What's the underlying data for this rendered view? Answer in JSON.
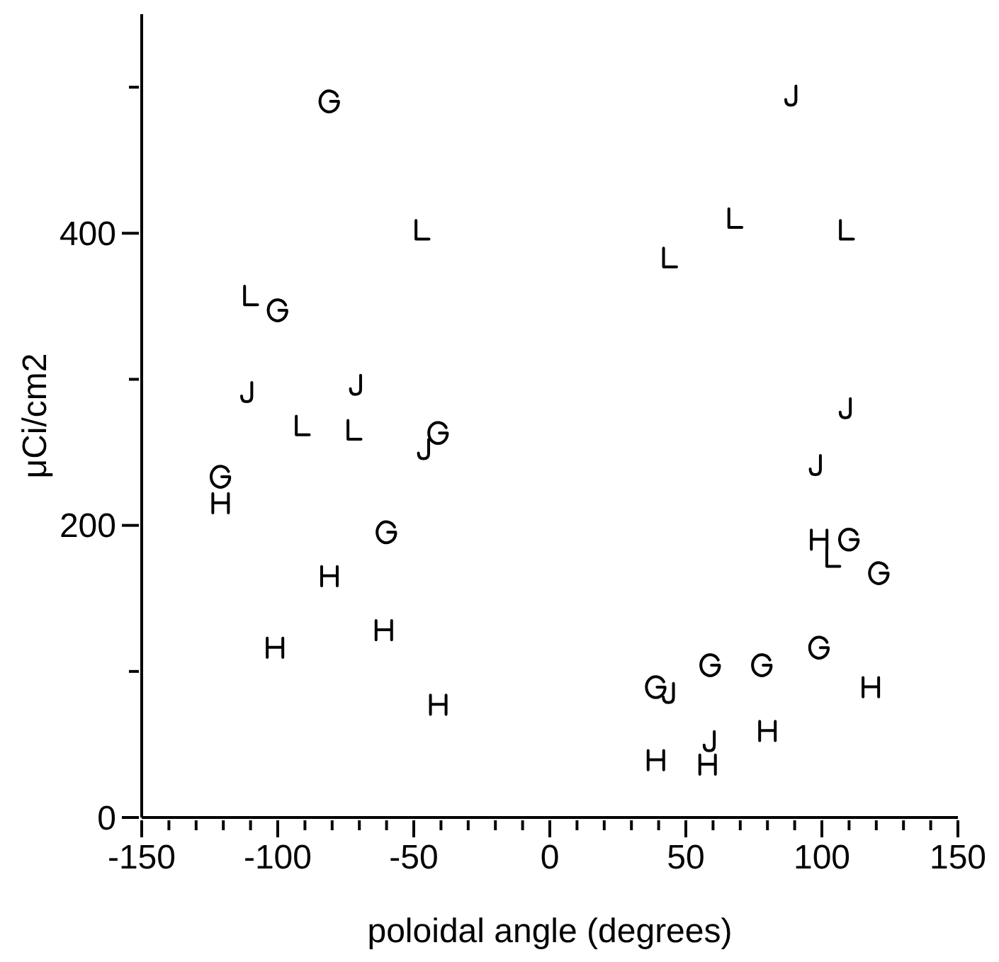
{
  "chart_data": {
    "type": "scatter",
    "xlabel": "poloidal angle (degrees)",
    "ylabel": "μCi/cm2",
    "legend": false,
    "grid": false,
    "xlim": [
      -150,
      150
    ],
    "ylim": [
      0,
      550
    ],
    "xticks": [
      -150,
      {
        "value": -140,
        "label": null
      },
      {
        "value": -130,
        "label": null
      },
      {
        "value": -120,
        "label": null
      },
      {
        "value": -110,
        "label": null
      },
      -100,
      {
        "value": -90,
        "label": null
      },
      {
        "value": -80,
        "label": null
      },
      {
        "value": -70,
        "label": null
      },
      {
        "value": -60,
        "label": null
      },
      -50,
      {
        "value": -40,
        "label": null
      },
      {
        "value": -30,
        "label": null
      },
      {
        "value": -20,
        "label": null
      },
      {
        "value": -10,
        "label": null
      },
      0,
      {
        "value": 10,
        "label": null
      },
      {
        "value": 20,
        "label": null
      },
      {
        "value": 30,
        "label": null
      },
      {
        "value": 40,
        "label": null
      },
      50,
      {
        "value": 60,
        "label": null
      },
      {
        "value": 70,
        "label": null
      },
      {
        "value": 80,
        "label": null
      },
      {
        "value": 90,
        "label": null
      },
      100,
      {
        "value": 110,
        "label": null
      },
      {
        "value": 120,
        "label": null
      },
      {
        "value": 130,
        "label": null
      },
      {
        "value": 140,
        "label": null
      },
      150
    ],
    "yticks": [
      0,
      {
        "value": 100,
        "label": null
      },
      200,
      {
        "value": 300,
        "label": null
      },
      400,
      {
        "value": 500,
        "label": null
      }
    ],
    "series": [
      {
        "color": "#000000",
        "x": [
          -81,
          -100,
          -121,
          -41,
          -60,
          39,
          59,
          78,
          99,
          110,
          121
        ],
        "values": [
          490,
          347,
          233,
          263,
          195,
          89,
          104,
          104,
          116,
          190,
          167
        ]
      },
      {
        "color": "#000000",
        "x": [
          -121,
          -81,
          -101,
          -61,
          -41,
          39,
          58,
          80,
          99,
          118
        ],
        "values": [
          215,
          165,
          116,
          128,
          77,
          39,
          36,
          59,
          190,
          89
        ]
      },
      {
        "color": "#000000",
        "x": [
          89,
          -111,
          -71,
          -46,
          109,
          98,
          44,
          59
        ],
        "values": [
          494,
          291,
          296,
          252,
          280,
          241,
          85,
          52
        ]
      },
      {
        "color": "#000000",
        "x": [
          -47,
          -110,
          -91,
          -72,
          44,
          68,
          109,
          104
        ],
        "values": [
          402,
          357,
          268,
          265,
          383,
          410,
          402,
          178
        ]
      }
    ]
  }
}
